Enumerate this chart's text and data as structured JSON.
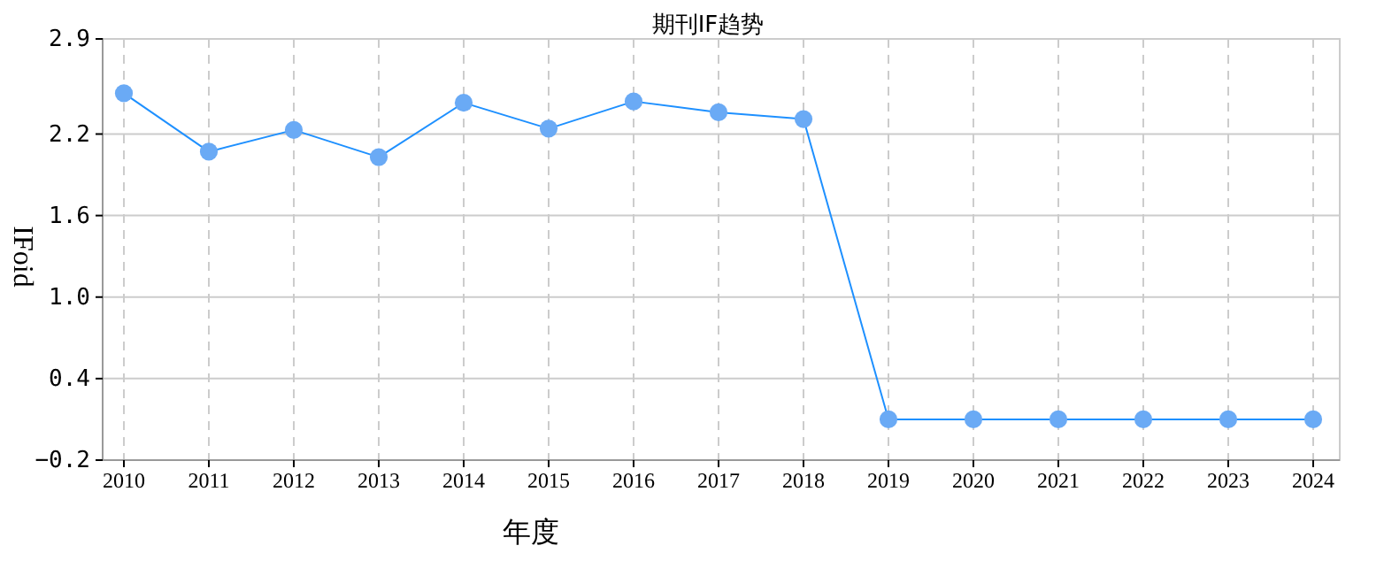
{
  "chart_data": {
    "type": "line",
    "title": "期刊IF趋势",
    "xlabel": "年度",
    "ylabel": "IFoid",
    "categories": [
      "2010",
      "2011",
      "2012",
      "2013",
      "2014",
      "2015",
      "2016",
      "2017",
      "2018",
      "2019",
      "2020",
      "2021",
      "2022",
      "2023",
      "2024"
    ],
    "series": [
      {
        "color": "#1e90ff",
        "values": [
          2.5,
          2.07,
          2.23,
          2.03,
          2.43,
          2.24,
          2.44,
          2.36,
          2.31,
          0.1,
          0.1,
          0.1,
          0.1,
          0.1,
          0.1
        ]
      }
    ],
    "ylim": [
      -0.2,
      2.9
    ],
    "yticks": [
      -0.2,
      0.4,
      {
        "value": 1,
        "label": "1.0"
      },
      1.6,
      2.2,
      2.9
    ],
    "grid": true,
    "marker": "circle",
    "line_style": "solid"
  }
}
